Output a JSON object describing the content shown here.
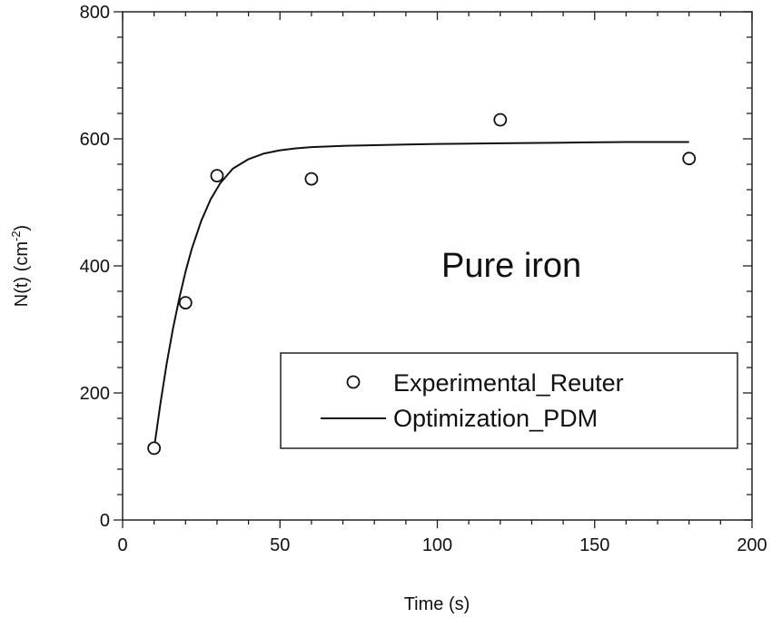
{
  "chart_data": {
    "type": "scatter",
    "title": "",
    "xlabel": "Time (s)",
    "ylabel": "N(t) (cm",
    "ylabel_sup": "-2",
    "ylabel_close": ")",
    "xlim": [
      0,
      200
    ],
    "ylim": [
      0,
      800
    ],
    "x_ticks": [
      "0",
      "50",
      "100",
      "150",
      "200"
    ],
    "y_ticks": [
      "0",
      "200",
      "400",
      "600",
      "800"
    ],
    "grid": false,
    "legend_position": "lower-right",
    "annotation": "Pure iron",
    "series": [
      {
        "name": "Experimental_Reuter",
        "type": "scatter",
        "marker": "open-circle",
        "x": [
          10,
          20,
          30,
          60,
          120,
          180
        ],
        "y": [
          113,
          342,
          542,
          537,
          630,
          569
        ]
      },
      {
        "name": "Optimization_PDM",
        "type": "line",
        "x": [
          10,
          12,
          14,
          16,
          18,
          20,
          22,
          25,
          28,
          31,
          35,
          40,
          45,
          50,
          55,
          60,
          70,
          80,
          90,
          100,
          120,
          140,
          160,
          180
        ],
        "y": [
          113,
          183,
          246,
          301,
          349,
          391,
          427,
          471,
          505,
          530,
          553,
          568,
          577,
          582,
          585,
          587,
          589,
          590,
          591,
          592,
          593,
          594,
          595,
          595
        ]
      }
    ]
  }
}
